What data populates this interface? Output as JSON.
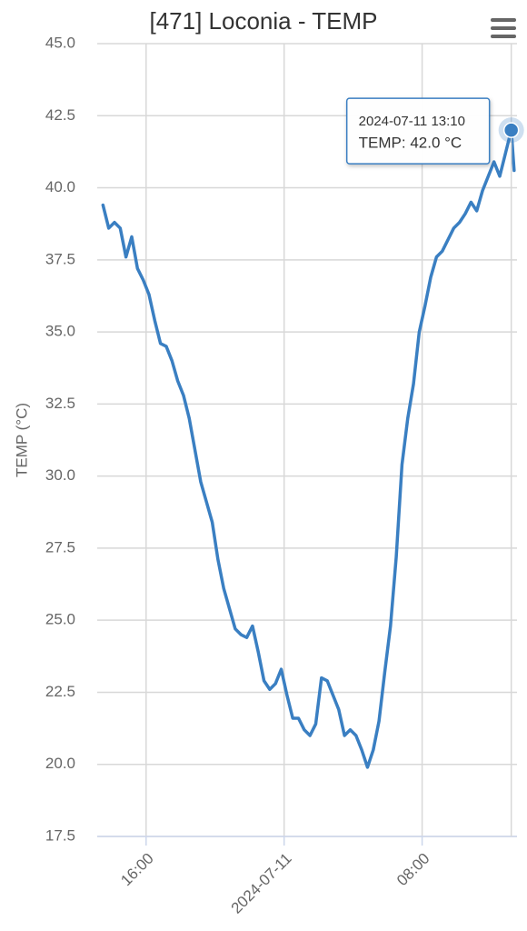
{
  "chart_data": {
    "type": "line",
    "title": "[471] Loconia - TEMP",
    "y_label": "TEMP (°C)",
    "x": [
      "2024-07-10 13:30",
      "2024-07-10 13:50",
      "2024-07-10 14:10",
      "2024-07-10 14:30",
      "2024-07-10 14:50",
      "2024-07-10 15:10",
      "2024-07-10 15:30",
      "2024-07-10 15:50",
      "2024-07-10 16:10",
      "2024-07-10 16:30",
      "2024-07-10 16:50",
      "2024-07-10 17:10",
      "2024-07-10 17:30",
      "2024-07-10 17:50",
      "2024-07-10 18:10",
      "2024-07-10 18:30",
      "2024-07-10 18:50",
      "2024-07-10 19:10",
      "2024-07-10 19:30",
      "2024-07-10 19:50",
      "2024-07-10 20:10",
      "2024-07-10 20:30",
      "2024-07-10 20:50",
      "2024-07-10 21:10",
      "2024-07-10 21:30",
      "2024-07-10 21:50",
      "2024-07-10 22:10",
      "2024-07-10 22:30",
      "2024-07-10 22:50",
      "2024-07-10 23:10",
      "2024-07-10 23:30",
      "2024-07-10 23:50",
      "2024-07-11 00:10",
      "2024-07-11 00:30",
      "2024-07-11 00:50",
      "2024-07-11 01:10",
      "2024-07-11 01:30",
      "2024-07-11 01:50",
      "2024-07-11 02:10",
      "2024-07-11 02:30",
      "2024-07-11 02:50",
      "2024-07-11 03:10",
      "2024-07-11 03:30",
      "2024-07-11 03:50",
      "2024-07-11 04:10",
      "2024-07-11 04:30",
      "2024-07-11 04:50",
      "2024-07-11 05:10",
      "2024-07-11 05:30",
      "2024-07-11 05:50",
      "2024-07-11 06:10",
      "2024-07-11 06:30",
      "2024-07-11 06:50",
      "2024-07-11 07:10",
      "2024-07-11 07:30",
      "2024-07-11 07:50",
      "2024-07-11 08:10",
      "2024-07-11 08:30",
      "2024-07-11 08:50",
      "2024-07-11 09:10",
      "2024-07-11 09:30",
      "2024-07-11 09:50",
      "2024-07-11 10:10",
      "2024-07-11 10:30",
      "2024-07-11 10:50",
      "2024-07-11 11:10",
      "2024-07-11 11:30",
      "2024-07-11 11:50",
      "2024-07-11 12:10",
      "2024-07-11 12:30",
      "2024-07-11 12:50",
      "2024-07-11 13:10",
      "2024-07-11 13:20"
    ],
    "series": [
      {
        "name": "TEMP",
        "color": "#3a7fc2",
        "values": [
          39.4,
          38.6,
          38.8,
          38.6,
          37.6,
          38.3,
          37.2,
          36.8,
          36.3,
          35.4,
          34.6,
          34.5,
          34.0,
          33.3,
          32.8,
          32.0,
          30.9,
          29.8,
          29.1,
          28.4,
          27.1,
          26.1,
          25.4,
          24.7,
          24.5,
          24.4,
          24.8,
          23.9,
          22.9,
          22.6,
          22.8,
          23.3,
          22.4,
          21.6,
          21.6,
          21.2,
          21.0,
          21.4,
          23.0,
          22.9,
          22.4,
          21.9,
          21.0,
          21.2,
          21.0,
          20.5,
          19.9,
          20.5,
          21.5,
          23.2,
          24.8,
          27.2,
          30.4,
          32.0,
          33.2,
          35.0,
          35.9,
          36.9,
          37.6,
          37.8,
          38.2,
          38.6,
          38.8,
          39.1,
          39.5,
          39.2,
          39.9,
          40.4,
          40.9,
          40.4,
          41.2,
          42.0,
          40.6
        ]
      }
    ],
    "xlim": [
      "2024-07-10 13:10",
      "2024-07-11 13:30"
    ],
    "xticks": [
      {
        "value": "2024-07-10 16:00",
        "label": "16:00"
      },
      {
        "value": "2024-07-11 00:00",
        "label": "2024-07-11"
      },
      {
        "value": "2024-07-11 08:00",
        "label": "08:00"
      }
    ],
    "ylim": [
      17.5,
      45
    ],
    "yticks": [
      17.5,
      {
        "value": 20,
        "label": "20.0"
      },
      22.5,
      {
        "value": 25,
        "label": "25.0"
      },
      27.5,
      {
        "value": 30,
        "label": "30.0"
      },
      32.5,
      {
        "value": 35,
        "label": "35.0"
      },
      37.5,
      {
        "value": 40,
        "label": "40.0"
      },
      42.5,
      {
        "value": 45,
        "label": "45.0"
      }
    ],
    "grid": true,
    "tooltip": {
      "index": 71,
      "label": "TEMP: 42.0 °C"
    }
  }
}
